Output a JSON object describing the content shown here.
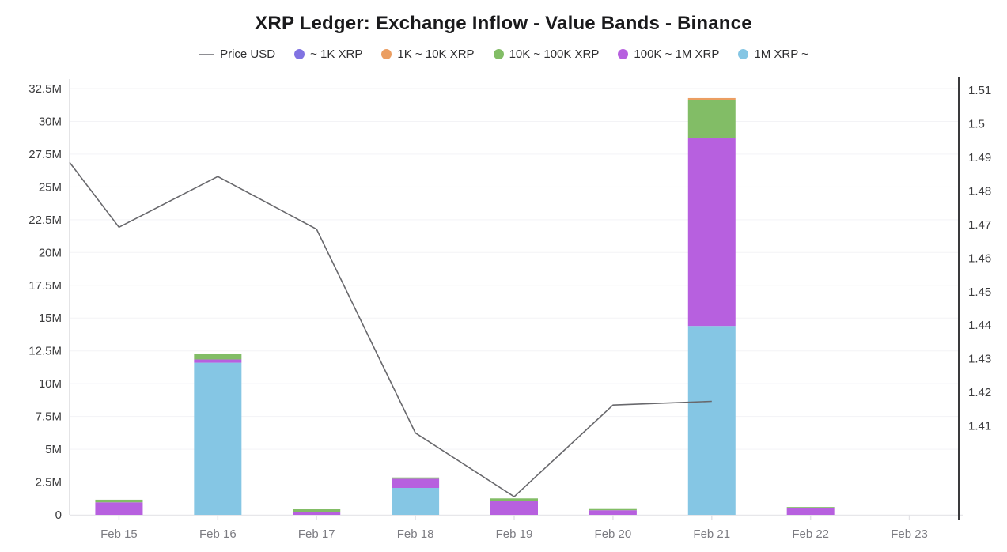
{
  "chart": {
    "title": "XRP Ledger: Exchange Inflow - Value Bands - Binance",
    "legend_items": [
      {
        "label": "Price USD",
        "marker": "line",
        "color": "#8e8e93"
      },
      {
        "label": "~ 1K XRP",
        "marker": "dot",
        "color": "#8173e2"
      },
      {
        "label": "1K ~ 10K XRP",
        "marker": "dot",
        "color": "#eb9e62"
      },
      {
        "label": "10K ~ 100K XRP",
        "marker": "dot",
        "color": "#82bd66"
      },
      {
        "label": "100K ~ 1M XRP",
        "marker": "dot",
        "color": "#b760df"
      },
      {
        "label": "1M XRP ~",
        "marker": "dot",
        "color": "#85c6e4"
      }
    ]
  },
  "chart_data": {
    "type": "bar",
    "stacked": true,
    "line_overlay": true,
    "title": "XRP Ledger: Exchange Inflow - Value Bands - Binance",
    "categories": [
      "Feb 15",
      "Feb 16",
      "Feb 17",
      "Feb 18",
      "Feb 19",
      "Feb 20",
      "Feb 21",
      "Feb 22",
      "Feb 23"
    ],
    "unit": "Million XRP",
    "grid": true,
    "legend_position": "top",
    "series": [
      {
        "name": "~ 1K XRP",
        "color": "#8173e2",
        "values": [
          0,
          0,
          0,
          0,
          0,
          0,
          0,
          0,
          0
        ]
      },
      {
        "name": "1K ~ 10K XRP",
        "color": "#eb9e62",
        "values": [
          0,
          0,
          0,
          0,
          0,
          0,
          0.18,
          0,
          0
        ]
      },
      {
        "name": "10K ~ 100K XRP",
        "color": "#82bd66",
        "values": [
          0.2,
          0.4,
          0.25,
          0.1,
          0.2,
          0.15,
          2.9,
          0.05,
          0
        ]
      },
      {
        "name": "100K ~ 1M XRP",
        "color": "#b760df",
        "values": [
          0.95,
          0.25,
          0.2,
          0.7,
          1.05,
          0.35,
          14.3,
          0.55,
          0
        ]
      },
      {
        "name": "1M XRP ~",
        "color": "#85c6e4",
        "values": [
          0,
          11.6,
          0,
          2.05,
          0,
          0,
          14.4,
          0,
          0
        ]
      }
    ],
    "stack_order_bottom_to_top": [
      "1M XRP ~",
      "100K ~ 1M XRP",
      "10K ~ 100K XRP",
      "1K ~ 10K XRP",
      "~ 1K XRP"
    ],
    "bar_totals": [
      1.15,
      12.25,
      0.45,
      2.85,
      1.25,
      0.5,
      31.78,
      0.6,
      0
    ],
    "left_axis": {
      "min": 0,
      "max": 32.5,
      "tick_step": 2.5,
      "ticks": [
        {
          "label": "0",
          "value": 0
        },
        {
          "label": "2.5M",
          "value": 2.5
        },
        {
          "label": "5M",
          "value": 5
        },
        {
          "label": "7.5M",
          "value": 7.5
        },
        {
          "label": "10M",
          "value": 10
        },
        {
          "label": "12.5M",
          "value": 12.5
        },
        {
          "label": "15M",
          "value": 15
        },
        {
          "label": "17.5M",
          "value": 17.5
        },
        {
          "label": "20M",
          "value": 20
        },
        {
          "label": "22.5M",
          "value": 22.5
        },
        {
          "label": "25M",
          "value": 25
        },
        {
          "label": "27.5M",
          "value": 27.5
        },
        {
          "label": "30M",
          "value": 30
        },
        {
          "label": "32.5M",
          "value": 32.5
        }
      ]
    },
    "right_axis": {
      "min": 1.3835,
      "max": 1.5105,
      "ticks": [
        {
          "label": "1.51",
          "value": 1.51
        },
        {
          "label": "1.5",
          "value": 1.5
        },
        {
          "label": "1.49",
          "value": 1.49
        },
        {
          "label": "1.48",
          "value": 1.48
        },
        {
          "label": "1.47",
          "value": 1.47
        },
        {
          "label": "1.46",
          "value": 1.46
        },
        {
          "label": "1.45",
          "value": 1.45
        },
        {
          "label": "1.44",
          "value": 1.44
        },
        {
          "label": "1.43",
          "value": 1.43
        },
        {
          "label": "1.42",
          "value": 1.42
        },
        {
          "label": "1.41",
          "value": 1.41
        }
      ]
    },
    "line_series": {
      "name": "Price USD",
      "color": "#68686c",
      "points": [
        {
          "x": -0.5,
          "price": 1.4885
        },
        {
          "x": 0,
          "price": 1.4692
        },
        {
          "x": 1,
          "price": 1.4843
        },
        {
          "x": 2,
          "price": 1.4686
        },
        {
          "x": 3,
          "price": 1.4079
        },
        {
          "x": 4,
          "price": 1.3889
        },
        {
          "x": 5,
          "price": 1.4162
        },
        {
          "x": 6,
          "price": 1.4173
        }
      ]
    },
    "colors": {
      "grid": "#f3f3f6",
      "baseline": "#e7e7ea",
      "left_axis_line": "#c9c9ce",
      "right_axis_line": "#3a3a3c",
      "left_tick_text": "#3c3c3e",
      "right_tick_text": "#3c3c3e",
      "x_tick_text": "#7c7c82"
    }
  }
}
